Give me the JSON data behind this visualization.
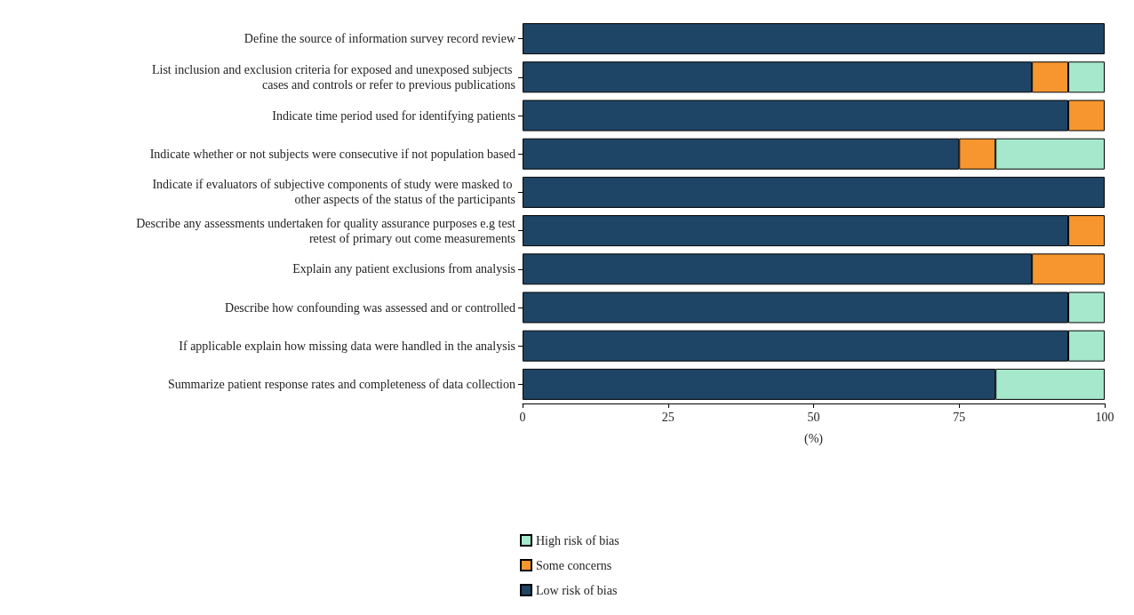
{
  "chart_data": {
    "type": "bar",
    "orientation": "horizontal",
    "stacked": true,
    "xlabel": "(%)",
    "categories": [
      "Define the source of information survey record review",
      "List inclusion and exclusion criteria for exposed and unexposed subjects cases and controls or refer to previous publications",
      "Indicate time period used for identifying patients",
      "Indicate whether or not subjects were consecutive if not population based",
      "Indicate if evaluators of subjective components of study were masked to other aspects of the status of the participants",
      "Describe any assessments undertaken for quality assurance purposes e.g test retest of primary out come measurements",
      "Explain any patient exclusions from analysis",
      "Describe how confounding was assessed and or controlled",
      "If applicable explain how missing data were handled in the analysis",
      "Summarize patient response rates and completeness of data collection"
    ],
    "series": [
      {
        "name": "Low risk of bias",
        "color": "#1f4566",
        "values": [
          100,
          87.5,
          93.75,
          75,
          100,
          93.75,
          87.5,
          93.75,
          93.75,
          81.25
        ]
      },
      {
        "name": "Some concerns",
        "color": "#f7962f",
        "values": [
          null,
          6.25,
          6.25,
          6.25,
          null,
          6.25,
          12.5,
          null,
          null,
          null
        ]
      },
      {
        "name": "High risk of bias",
        "color": "#a6e8cc",
        "values": [
          null,
          6.25,
          null,
          18.75,
          null,
          null,
          null,
          6.25,
          6.25,
          18.75
        ]
      }
    ],
    "xlim": [
      0,
      100
    ],
    "xticks": [
      0,
      25,
      50,
      75,
      100
    ],
    "grid": false,
    "legend": "bottom"
  }
}
